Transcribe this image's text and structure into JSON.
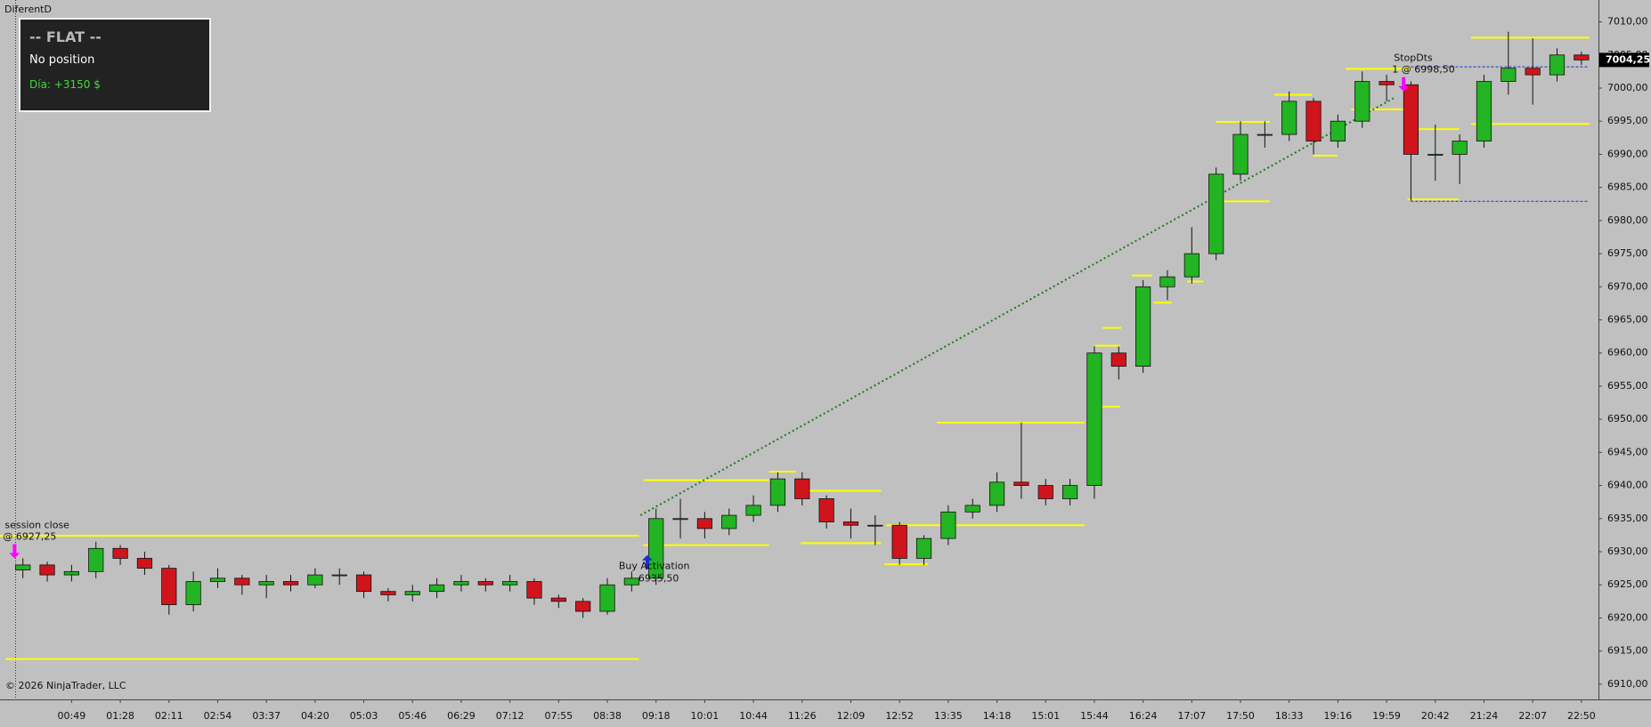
{
  "chart_data": {
    "type": "candlestick",
    "title": "DiferentD",
    "x": [
      -1.0,
      -0.5,
      0,
      0.5,
      1,
      1.5,
      2,
      2.5,
      3,
      3.5,
      4,
      4.5,
      5,
      5.5,
      6,
      6.5,
      7,
      7.5,
      8,
      8.5,
      9,
      9.5,
      10,
      10.5,
      11,
      11.5,
      12,
      12.5,
      13,
      13.5,
      14,
      14.5,
      15,
      15.5,
      16,
      16.5,
      17,
      17.5,
      18,
      18.5,
      19,
      19.5,
      20,
      20.5,
      21,
      21.5,
      22,
      22.5,
      23,
      23.5,
      24,
      24.5,
      25,
      25.5,
      26,
      26.5,
      27,
      27.5,
      28,
      28.5,
      29,
      29.5,
      30,
      30.5,
      31
    ],
    "open": [
      6927.25,
      6928,
      6926.5,
      6927,
      6930.5,
      6929,
      6927.5,
      6922,
      6925.5,
      6926,
      6925,
      6925.5,
      6925,
      6926.5,
      6926.5,
      6924,
      6923.5,
      6924,
      6925,
      6925.5,
      6925,
      6925.5,
      6923,
      6922.5,
      6921,
      6925,
      6926,
      6935,
      6935,
      6933.5,
      6935.5,
      6937,
      6941,
      6938,
      6934.5,
      6934,
      6934,
      6929,
      6932,
      6936,
      6937,
      6940.5,
      6940,
      6938,
      6940,
      6960,
      6958,
      6970,
      6971.5,
      6975,
      6987,
      6993,
      6993,
      6998,
      6992,
      6995,
      7001,
      7000.5,
      6990,
      6990,
      6992,
      7001,
      7003,
      7002,
      7005
    ],
    "high": [
      6929,
      6928.5,
      6928,
      6931.5,
      6931,
      6930,
      6928,
      6927,
      6927.5,
      6926.5,
      6926.5,
      6926.5,
      6927.5,
      6927.5,
      6927,
      6924.5,
      6925,
      6926,
      6926.5,
      6926,
      6926.5,
      6926,
      6923.5,
      6923,
      6926,
      6927,
      6936.5,
      6938,
      6936,
      6936.5,
      6938.5,
      6942,
      6942,
      6938.5,
      6936.5,
      6935.5,
      6934.5,
      6932.5,
      6937,
      6938,
      6942,
      6949.5,
      6941,
      6941,
      6961,
      6961,
      6971,
      6972.5,
      6979,
      6988,
      6995,
      6995,
      6999.5,
      6998.5,
      6996,
      7002.5,
      7002,
      7001,
      6994.5,
      6993,
      7002,
      7008.5,
      7007.5,
      7006,
      7005.5
    ],
    "low": [
      6926,
      6925.5,
      6925.5,
      6926,
      6928,
      6926.5,
      6920.5,
      6921,
      6924.5,
      6923.5,
      6923,
      6924,
      6924.5,
      6925,
      6923,
      6922.5,
      6922.5,
      6923,
      6924,
      6924,
      6924,
      6922,
      6921.5,
      6920,
      6920.5,
      6924,
      6925,
      6932,
      6932,
      6932.5,
      6934.5,
      6936,
      6937,
      6933.5,
      6932,
      6931,
      6928,
      6928,
      6931,
      6935,
      6936,
      6938,
      6937,
      6937,
      6938,
      6956,
      6957,
      6968,
      6970.5,
      6974,
      6986,
      6991,
      6992,
      6990,
      6991,
      6994,
      6998,
      6983,
      6986,
      6985.5,
      6991,
      6999,
      6997.5,
      7001,
      7003.5
    ],
    "close": [
      6928,
      6926.5,
      6927,
      6930.5,
      6929,
      6927.5,
      6922,
      6925.5,
      6926,
      6925,
      6925.5,
      6925,
      6926.5,
      6926.5,
      6924,
      6923.5,
      6924,
      6925,
      6925.5,
      6925,
      6925.5,
      6923,
      6922.5,
      6921,
      6925,
      6926,
      6935,
      6935,
      6933.5,
      6935.5,
      6937,
      6941,
      6938,
      6934.5,
      6934,
      6934,
      6929,
      6932,
      6936,
      6937,
      6940.5,
      6940,
      6938,
      6940,
      6960,
      6958,
      6970,
      6971.5,
      6975,
      6987,
      6993,
      6993,
      6998,
      6992,
      6995,
      7001,
      7000.5,
      6990,
      6990,
      6992,
      7001,
      7003,
      7002,
      7005,
      7004.25
    ],
    "up_color": "#22b422",
    "down_color": "#d0141c",
    "xlim": [
      -1.47,
      31.35
    ],
    "xticks": [
      {
        "value": 0,
        "label": "00:49"
      },
      {
        "value": 1,
        "label": "01:28"
      },
      {
        "value": 2,
        "label": "02:11"
      },
      {
        "value": 3,
        "label": "02:54"
      },
      {
        "value": 4,
        "label": "03:37"
      },
      {
        "value": 5,
        "label": "04:20"
      },
      {
        "value": 6,
        "label": "05:03"
      },
      {
        "value": 7,
        "label": "05:46"
      },
      {
        "value": 8,
        "label": "06:29"
      },
      {
        "value": 9,
        "label": "07:12"
      },
      {
        "value": 10,
        "label": "07:55"
      },
      {
        "value": 11,
        "label": "08:38"
      },
      {
        "value": 12,
        "label": "09:18"
      },
      {
        "value": 13,
        "label": "10:01"
      },
      {
        "value": 14,
        "label": "10:44"
      },
      {
        "value": 15,
        "label": "11:26"
      },
      {
        "value": 16,
        "label": "12:09"
      },
      {
        "value": 17,
        "label": "12:52"
      },
      {
        "value": 18,
        "label": "13:35"
      },
      {
        "value": 19,
        "label": "14:18"
      },
      {
        "value": 20,
        "label": "15:01"
      },
      {
        "value": 21,
        "label": "15:44"
      },
      {
        "value": 22,
        "label": "16:24"
      },
      {
        "value": 23,
        "label": "17:07"
      },
      {
        "value": 24,
        "label": "17:50"
      },
      {
        "value": 25,
        "label": "18:33"
      },
      {
        "value": 26,
        "label": "19:16"
      },
      {
        "value": 27,
        "label": "19:59"
      },
      {
        "value": 28,
        "label": "20:42"
      },
      {
        "value": 29,
        "label": "21:24"
      },
      {
        "value": 30,
        "label": "22:07"
      },
      {
        "value": 31,
        "label": "22:50"
      }
    ],
    "ylim": [
      6907.7,
      7013.3
    ],
    "yticks": [
      {
        "value": 6910,
        "label": "6910,00"
      },
      {
        "value": 6915,
        "label": "6915,00"
      },
      {
        "value": 6920,
        "label": "6920,00"
      },
      {
        "value": 6925,
        "label": "6925,00"
      },
      {
        "value": 6930,
        "label": "6930,00"
      },
      {
        "value": 6935,
        "label": "6935,00"
      },
      {
        "value": 6940,
        "label": "6940,00"
      },
      {
        "value": 6945,
        "label": "6945,00"
      },
      {
        "value": 6950,
        "label": "6950,00"
      },
      {
        "value": 6955,
        "label": "6955,00"
      },
      {
        "value": 6960,
        "label": "6960,00"
      },
      {
        "value": 6965,
        "label": "6965,00"
      },
      {
        "value": 6970,
        "label": "6970,00"
      },
      {
        "value": 6975,
        "label": "6975,00"
      },
      {
        "value": 6980,
        "label": "6980,00"
      },
      {
        "value": 6985,
        "label": "6985,00"
      },
      {
        "value": 6990,
        "label": "6990,00"
      },
      {
        "value": 6995,
        "label": "6995,00"
      },
      {
        "value": 7000,
        "label": "7000,00"
      },
      {
        "value": 7005,
        "label": "7005,00"
      },
      {
        "value": 7010,
        "label": "7010,00"
      }
    ],
    "last_price": {
      "value": 7004.25,
      "label": "7004,25"
    },
    "level_color": "#ffff00",
    "levels": [
      {
        "value": 6932.4,
        "x": [
          -1.47,
          11.65
        ]
      },
      {
        "value": 6913.8,
        "x": [
          -1.36,
          11.65
        ]
      },
      {
        "value": 6940.8,
        "x": [
          11.74,
          14.32
        ]
      },
      {
        "value": 6931,
        "x": [
          11.74,
          14.32
        ]
      },
      {
        "value": 6942.1,
        "x": [
          14.32,
          14.88
        ]
      },
      {
        "value": 6939.2,
        "x": [
          14.97,
          16.62
        ]
      },
      {
        "value": 6931.3,
        "x": [
          14.97,
          16.62
        ]
      },
      {
        "value": 6928.1,
        "x": [
          16.69,
          17.58
        ]
      },
      {
        "value": 6934,
        "x": [
          16.73,
          20.8
        ]
      },
      {
        "value": 6949.5,
        "x": [
          17.77,
          20.8
        ]
      },
      {
        "value": 6961.1,
        "x": [
          21.01,
          21.53
        ]
      },
      {
        "value": 6951.9,
        "x": [
          21.01,
          21.53
        ]
      },
      {
        "value": 6963.8,
        "x": [
          21.17,
          21.55
        ]
      },
      {
        "value": 6971.7,
        "x": [
          21.77,
          22.18
        ]
      },
      {
        "value": 6967.6,
        "x": [
          22.22,
          22.59
        ]
      },
      {
        "value": 6970.8,
        "x": [
          22.91,
          23.24
        ]
      },
      {
        "value": 6982.9,
        "x": [
          23.39,
          24.6
        ]
      },
      {
        "value": 6994.9,
        "x": [
          23.5,
          24.6
        ]
      },
      {
        "value": 6999,
        "x": [
          24.69,
          25.47
        ]
      },
      {
        "value": 6989.8,
        "x": [
          25.49,
          25.99
        ]
      },
      {
        "value": 7002.9,
        "x": [
          26.16,
          27.5
        ]
      },
      {
        "value": 6996.8,
        "x": [
          26.27,
          27.5
        ]
      },
      {
        "value": 6993.8,
        "x": [
          27.6,
          28.49
        ]
      },
      {
        "value": 6983.2,
        "x": [
          27.43,
          28.49
        ]
      },
      {
        "value": 7007.6,
        "x": [
          28.73,
          31.17
        ]
      },
      {
        "value": 6994.6,
        "x": [
          28.73,
          31.17
        ]
      }
    ],
    "stop_color": "#1a2fd0",
    "stop_levels": [
      {
        "value": 7003.2,
        "x": [
          27.5,
          31.13
        ]
      },
      {
        "value": 6982.9,
        "x": [
          27.5,
          31.13
        ]
      }
    ],
    "trendline": {
      "color": "#1b7a1b",
      "x": [
        11.68,
        27.15
      ],
      "values": [
        6935.5,
        6998.5
      ]
    },
    "markers": [
      {
        "x": -1.17,
        "value": 6929,
        "direction": "down",
        "color": "#ff00ff",
        "label": "session close",
        "price_label": "@ 6927,25"
      },
      {
        "x": 11.82,
        "value": 6929.5,
        "direction": "up",
        "color": "#1a2fd0",
        "label": "Buy Activation",
        "price_label": "6935,50"
      },
      {
        "x": 27.35,
        "value": 6999.5,
        "direction": "down",
        "color": "#ff00ff",
        "label": "StopDts",
        "price_label": "1 @ 6998,50"
      }
    ],
    "copyright": "© 2026 NinjaTrader, LLC"
  },
  "position_panel": {
    "status": "-- FLAT --",
    "position": "No position",
    "pnl": "Día: +3150 $"
  }
}
